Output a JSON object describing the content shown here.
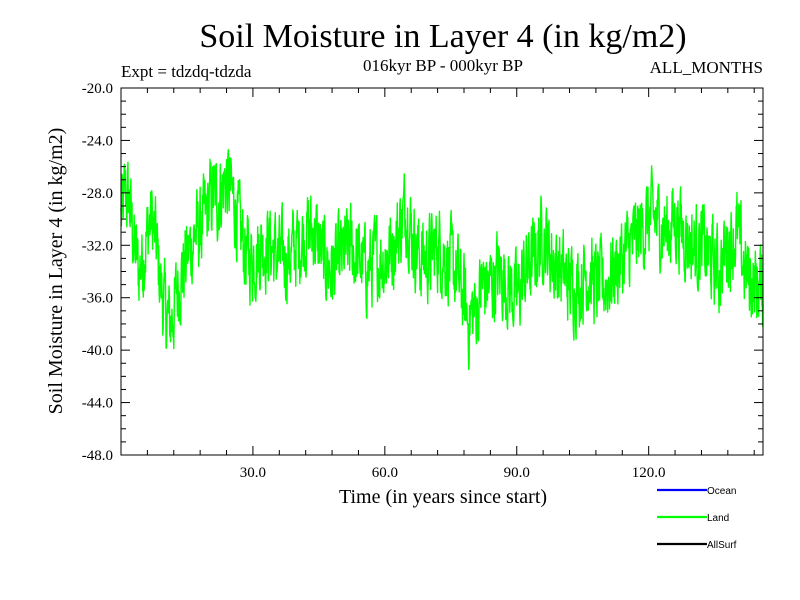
{
  "chart_data": {
    "type": "line",
    "title": "Soil Moisture in Layer 4 (in kg/m2)",
    "subtitle_left": "Expt = tdzdq-tdzda",
    "subtitle_center": "016kyr BP - 000kyr BP",
    "subtitle_right": "ALL_MONTHS",
    "xlabel": "Time (in years since start)",
    "ylabel": "Soil Moisture in Layer 4 (in kg/m2)",
    "xlim": [
      0,
      146
    ],
    "ylim": [
      -48,
      -20
    ],
    "x_ticks": [
      30,
      60,
      90,
      120
    ],
    "x_tick_labels": [
      "30.0",
      "60.0",
      "90.0",
      "120.0"
    ],
    "y_ticks": [
      -20,
      -24,
      -28,
      -32,
      -36,
      -40,
      -44,
      -48
    ],
    "y_tick_labels": [
      "-20.0",
      "-24.0",
      "-28.0",
      "-32.0",
      "-36.0",
      "-40.0",
      "-44.0",
      "-48.0"
    ],
    "legend": [
      {
        "name": "Ocean",
        "color": "#0000ff"
      },
      {
        "name": "Land",
        "color": "#00ff00"
      },
      {
        "name": "AllSurf",
        "color": "#000000"
      }
    ],
    "series": [
      {
        "name": "Land",
        "color": "#00ff00",
        "envelope": {
          "x": [
            0,
            1,
            2,
            3,
            4,
            5,
            6,
            7,
            8,
            9,
            10,
            11,
            12,
            13,
            14,
            15,
            16,
            17,
            18,
            19,
            20,
            21,
            22,
            23,
            24,
            25,
            26,
            27,
            28,
            29,
            30,
            32,
            34,
            36,
            38,
            40,
            42,
            44,
            46,
            48,
            50,
            52,
            54,
            56,
            58,
            60,
            62,
            64,
            65,
            66,
            68,
            70,
            72,
            74,
            76,
            78,
            79,
            80,
            81,
            82,
            84,
            86,
            88,
            90,
            92,
            94,
            96,
            98,
            100,
            102,
            104,
            106,
            108,
            110,
            112,
            114,
            116,
            118,
            120,
            122,
            124,
            126,
            128,
            130,
            132,
            134,
            136,
            138,
            140,
            142,
            144,
            146
          ],
          "y": [
            -30,
            -28,
            -29,
            -32,
            -34,
            -33,
            -31,
            -30,
            -32,
            -35,
            -37,
            -38,
            -37,
            -35,
            -34,
            -33,
            -32,
            -31,
            -31,
            -30,
            -29,
            -28,
            -28.5,
            -27.5,
            -27,
            -28,
            -29,
            -31,
            -32,
            -33,
            -33,
            -32,
            -32,
            -33,
            -33,
            -32,
            -31,
            -31,
            -33,
            -34,
            -33,
            -32,
            -33,
            -34,
            -33,
            -33,
            -32,
            -30,
            -29,
            -31,
            -33,
            -33,
            -32,
            -33,
            -34,
            -36,
            -38,
            -37,
            -37,
            -35,
            -35,
            -34,
            -35,
            -36,
            -34,
            -33,
            -31,
            -33,
            -34,
            -35,
            -35,
            -34,
            -35,
            -35,
            -34,
            -33,
            -32,
            -31,
            -30,
            -30,
            -31,
            -30,
            -31,
            -32,
            -32,
            -33,
            -34,
            -32,
            -31,
            -34,
            -35,
            -35
          ],
          "amplitude": 5,
          "samples_per_year": 12
        }
      }
    ]
  }
}
